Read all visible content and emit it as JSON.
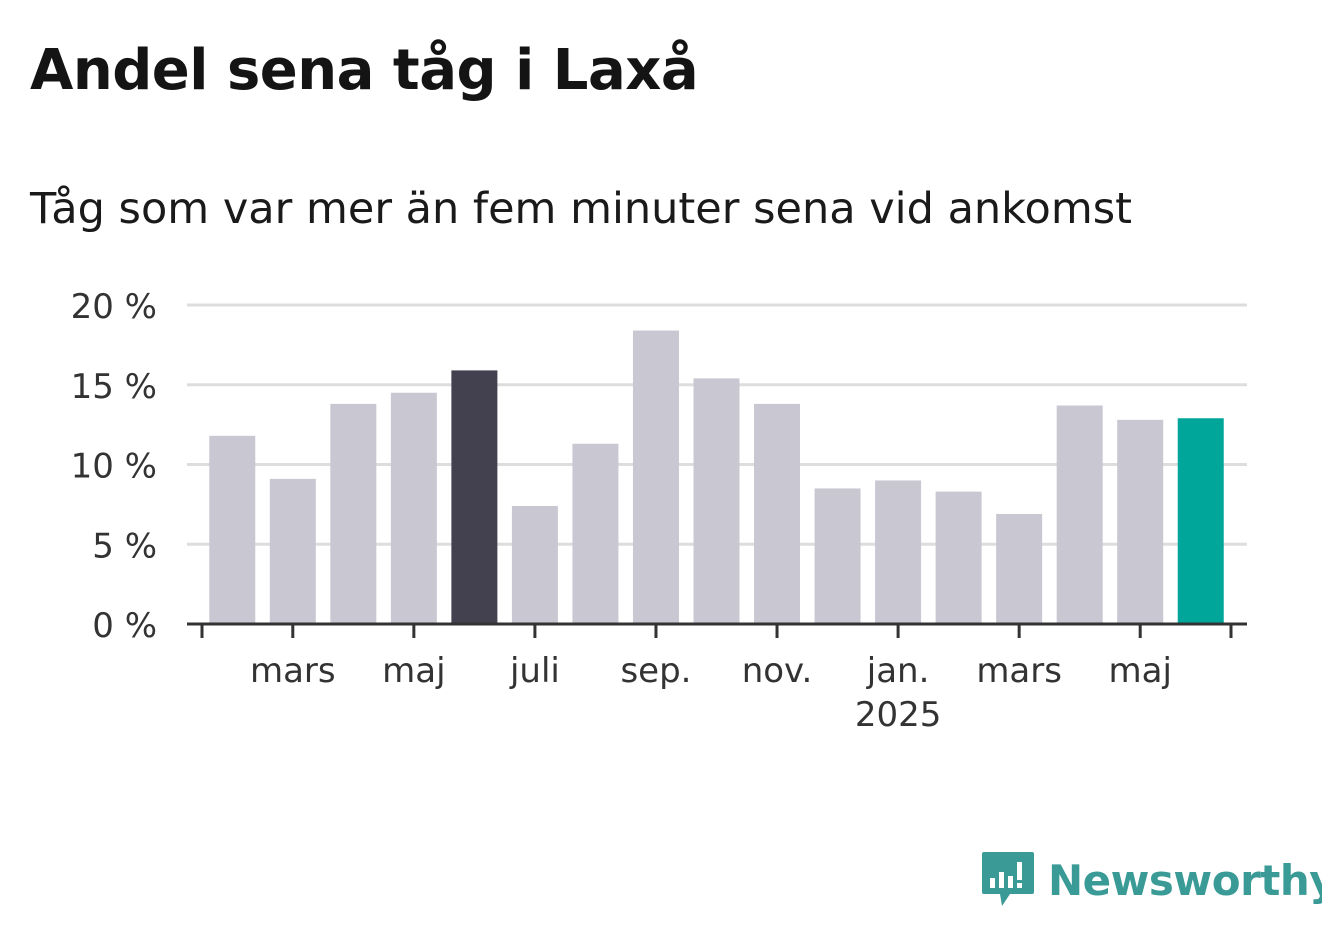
{
  "title": "Andel sena tåg i Laxå",
  "subtitle": "Tåg som var mer än fem minuter sena vid ankomst",
  "brand": {
    "name": "Newsworthy",
    "color": "#3a9a96"
  },
  "colors": {
    "default_bar": "#c8c7d2",
    "highlight_bar": "#43414f",
    "latest_bar": "#00a69a",
    "grid": "#dddddd",
    "axis": "#333333"
  },
  "chart_data": {
    "type": "bar",
    "x": [
      "2024-02",
      "2024-03",
      "2024-04",
      "2024-05",
      "2024-06",
      "2024-07",
      "2024-08",
      "2024-09",
      "2024-10",
      "2024-11",
      "2024-12",
      "2025-01",
      "2025-02",
      "2025-03",
      "2025-04",
      "2025-05",
      "2025-06"
    ],
    "values": [
      11.8,
      9.1,
      13.8,
      14.5,
      15.9,
      7.4,
      11.3,
      18.4,
      15.4,
      13.8,
      8.5,
      9.0,
      8.3,
      6.9,
      13.7,
      12.8,
      12.9
    ],
    "highlight": {
      "2024-06": "highlight_bar",
      "2025-06": "latest_bar"
    },
    "ylim": [
      0,
      20
    ],
    "yticks": [
      0,
      5,
      10,
      15,
      20
    ],
    "ytick_labels": [
      "0 %",
      "5 %",
      "10 %",
      "15 %",
      "20 %"
    ],
    "xticks": [
      {
        "at": "2024-03",
        "label": "mars",
        "sublabel": ""
      },
      {
        "at": "2024-05",
        "label": "maj",
        "sublabel": ""
      },
      {
        "at": "2024-07",
        "label": "juli",
        "sublabel": ""
      },
      {
        "at": "2024-09",
        "label": "sep.",
        "sublabel": ""
      },
      {
        "at": "2024-11",
        "label": "nov.",
        "sublabel": ""
      },
      {
        "at": "2025-01",
        "label": "jan.",
        "sublabel": "2025"
      },
      {
        "at": "2025-03",
        "label": "mars",
        "sublabel": ""
      },
      {
        "at": "2025-05",
        "label": "maj",
        "sublabel": ""
      }
    ],
    "grid": true
  }
}
